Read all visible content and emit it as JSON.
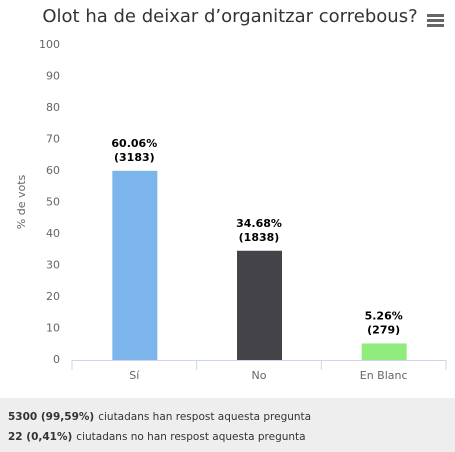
{
  "chart_data": {
    "type": "bar",
    "title": "Olot ha de deixar d’organitzar correbous?",
    "y_label": "% de vots",
    "categories": [
      "Sí",
      "No",
      "En Blanc"
    ],
    "values": [
      60.06,
      34.68,
      5.26
    ],
    "value_labels": [
      "60.06%",
      "34.68%",
      "5.26%"
    ],
    "counts": [
      3183,
      1838,
      279
    ],
    "count_labels": [
      "(3183)",
      "(1838)",
      "(279)"
    ],
    "colors": [
      "#7cb5ec",
      "#434348",
      "#90ed7d"
    ],
    "ylim": [
      0,
      100
    ],
    "yticks": [
      0,
      10,
      20,
      30,
      40,
      50,
      60,
      70,
      80,
      90,
      100
    ],
    "grid": false
  },
  "footer": [
    {
      "strong": "5300 (99,59%)",
      "text": "ciutadans han respost aquesta pregunta"
    },
    {
      "strong": "22 (0,41%)",
      "text": "ciutadans no han respost aquesta pregunta"
    }
  ]
}
